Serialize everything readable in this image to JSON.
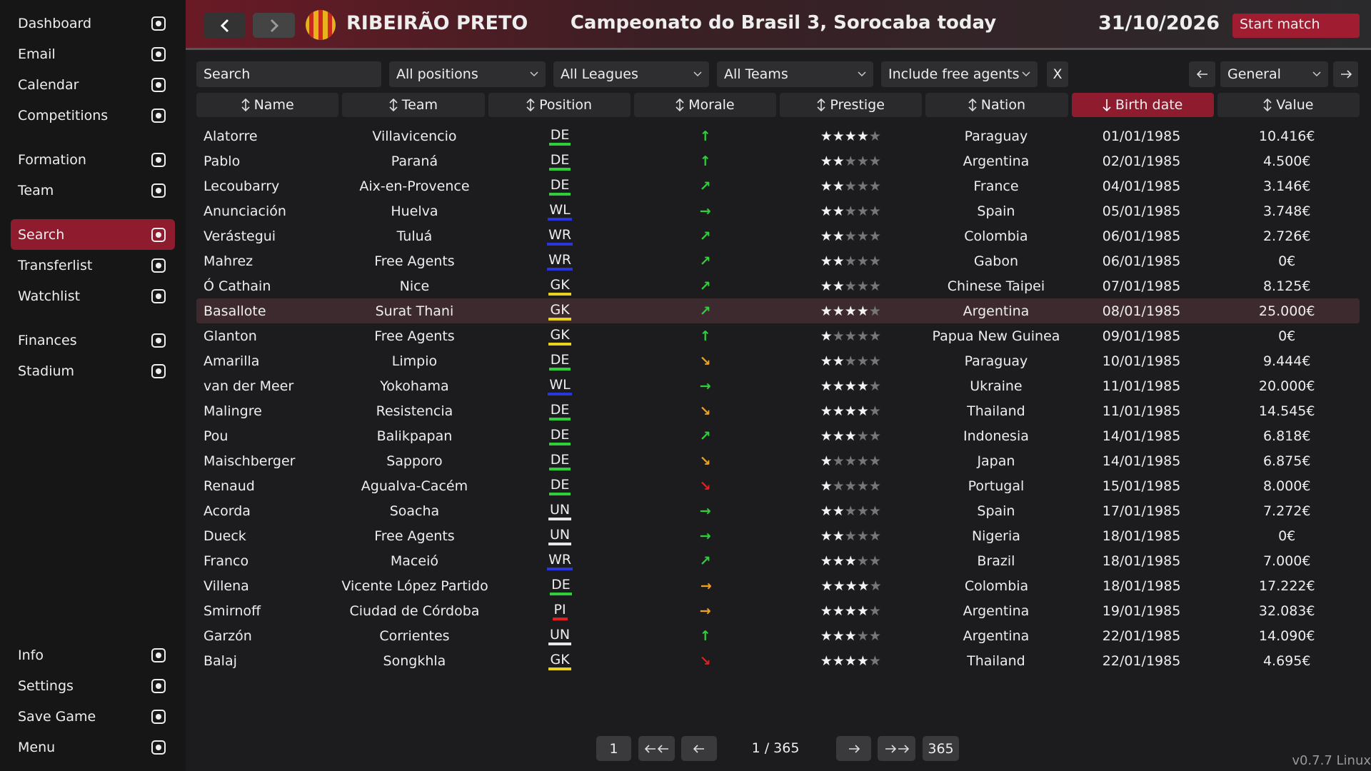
{
  "sidebar": {
    "groups": [
      [
        {
          "label": "Dashboard"
        },
        {
          "label": "Email"
        },
        {
          "label": "Calendar"
        },
        {
          "label": "Competitions"
        }
      ],
      [
        {
          "label": "Formation"
        },
        {
          "label": "Team"
        }
      ],
      [
        {
          "label": "Search",
          "selected": true
        },
        {
          "label": "Transferlist"
        },
        {
          "label": "Watchlist"
        }
      ],
      [
        {
          "label": "Finances"
        },
        {
          "label": "Stadium"
        }
      ]
    ],
    "bottom": [
      {
        "label": "Info"
      },
      {
        "label": "Settings"
      },
      {
        "label": "Save Game"
      },
      {
        "label": "Menu"
      }
    ]
  },
  "header": {
    "club": "RIBEIRÃO PRETO",
    "title": "Campeonato do Brasil 3, Sorocaba today",
    "date": "31/10/2026",
    "start_button": "Start match"
  },
  "filters": {
    "search": "Search",
    "positions": "All positions",
    "leagues": "All Leagues",
    "teams": "All Teams",
    "free_agents": "Include free agents",
    "clear": "X",
    "view": "General"
  },
  "table": {
    "columns": [
      "Name",
      "Team",
      "Position",
      "Morale",
      "Prestige",
      "Nation",
      "Birth date",
      "Value"
    ],
    "sorted_column": 6,
    "highlighted_row": 7,
    "position_colors": {
      "DE": "#2fcf3a",
      "WL": "#2a35e0",
      "WR": "#2a35e0",
      "GK": "#e8d21c",
      "UN": "#e8e8e8",
      "PI": "#e02020"
    },
    "rows": [
      {
        "name": "Alatorre",
        "team": "Villavicencio",
        "position": "DE",
        "morale": {
          "symbol": "↑",
          "color": "#2fcf3a"
        },
        "prestige": 4,
        "nation": "Paraguay",
        "birth_date": "01/01/1985",
        "value": "10.416€"
      },
      {
        "name": "Pablo",
        "team": "Paraná",
        "position": "DE",
        "morale": {
          "symbol": "↑",
          "color": "#2fcf3a"
        },
        "prestige": 2,
        "nation": "Argentina",
        "birth_date": "02/01/1985",
        "value": "4.500€"
      },
      {
        "name": "Lecoubarry",
        "team": "Aix-en-Provence",
        "position": "DE",
        "morale": {
          "symbol": "↗",
          "color": "#2fcf3a"
        },
        "prestige": 2,
        "nation": "France",
        "birth_date": "04/01/1985",
        "value": "3.146€"
      },
      {
        "name": "Anunciación",
        "team": "Huelva",
        "position": "WL",
        "morale": {
          "symbol": "→",
          "color": "#2fcf3a"
        },
        "prestige": 2,
        "nation": "Spain",
        "birth_date": "05/01/1985",
        "value": "3.748€"
      },
      {
        "name": "Verástegui",
        "team": "Tuluá",
        "position": "WR",
        "morale": {
          "symbol": "↗",
          "color": "#2fcf3a"
        },
        "prestige": 2,
        "nation": "Colombia",
        "birth_date": "06/01/1985",
        "value": "2.726€"
      },
      {
        "name": "Mahrez",
        "team": "Free Agents",
        "position": "WR",
        "morale": {
          "symbol": "↗",
          "color": "#2fcf3a"
        },
        "prestige": 2,
        "nation": "Gabon",
        "birth_date": "06/01/1985",
        "value": "0€"
      },
      {
        "name": "Ó Cathain",
        "team": "Nice",
        "position": "GK",
        "morale": {
          "symbol": "↗",
          "color": "#2fcf3a"
        },
        "prestige": 2,
        "nation": "Chinese Taipei",
        "birth_date": "07/01/1985",
        "value": "8.125€"
      },
      {
        "name": "Basallote",
        "team": "Surat Thani",
        "position": "GK",
        "morale": {
          "symbol": "↗",
          "color": "#2fcf3a"
        },
        "prestige": 4,
        "nation": "Argentina",
        "birth_date": "08/01/1985",
        "value": "25.000€"
      },
      {
        "name": "Glanton",
        "team": "Free Agents",
        "position": "GK",
        "morale": {
          "symbol": "↑",
          "color": "#2fcf3a"
        },
        "prestige": 1,
        "nation": "Papua New Guinea",
        "birth_date": "09/01/1985",
        "value": "0€"
      },
      {
        "name": "Amarilla",
        "team": "Limpio",
        "position": "DE",
        "morale": {
          "symbol": "↘",
          "color": "#f0a020"
        },
        "prestige": 2,
        "nation": "Paraguay",
        "birth_date": "10/01/1985",
        "value": "9.444€"
      },
      {
        "name": "van der Meer",
        "team": "Yokohama",
        "position": "WL",
        "morale": {
          "symbol": "→",
          "color": "#2fcf3a"
        },
        "prestige": 4,
        "nation": "Ukraine",
        "birth_date": "11/01/1985",
        "value": "20.000€"
      },
      {
        "name": "Malingre",
        "team": "Resistencia",
        "position": "DE",
        "morale": {
          "symbol": "↘",
          "color": "#f0a020"
        },
        "prestige": 4,
        "nation": "Thailand",
        "birth_date": "11/01/1985",
        "value": "14.545€"
      },
      {
        "name": "Pou",
        "team": "Balikpapan",
        "position": "DE",
        "morale": {
          "symbol": "↗",
          "color": "#2fcf3a"
        },
        "prestige": 3,
        "nation": "Indonesia",
        "birth_date": "14/01/1985",
        "value": "6.818€"
      },
      {
        "name": "Maischberger",
        "team": "Sapporo",
        "position": "DE",
        "morale": {
          "symbol": "↘",
          "color": "#f0a020"
        },
        "prestige": 1,
        "nation": "Japan",
        "birth_date": "14/01/1985",
        "value": "6.875€"
      },
      {
        "name": "Renaud",
        "team": "Agualva-Cacém",
        "position": "DE",
        "morale": {
          "symbol": "↘",
          "color": "#e02020"
        },
        "prestige": 1,
        "nation": "Portugal",
        "birth_date": "15/01/1985",
        "value": "8.000€"
      },
      {
        "name": "Acorda",
        "team": "Soacha",
        "position": "UN",
        "morale": {
          "symbol": "→",
          "color": "#2fcf3a"
        },
        "prestige": 2,
        "nation": "Spain",
        "birth_date": "17/01/1985",
        "value": "7.272€"
      },
      {
        "name": "Dueck",
        "team": "Free Agents",
        "position": "UN",
        "morale": {
          "symbol": "→",
          "color": "#2fcf3a"
        },
        "prestige": 2,
        "nation": "Nigeria",
        "birth_date": "18/01/1985",
        "value": "0€"
      },
      {
        "name": "Franco",
        "team": "Maceió",
        "position": "WR",
        "morale": {
          "symbol": "↗",
          "color": "#2fcf3a"
        },
        "prestige": 3,
        "nation": "Brazil",
        "birth_date": "18/01/1985",
        "value": "7.000€"
      },
      {
        "name": "Villena",
        "team": "Vicente López Partido",
        "position": "DE",
        "morale": {
          "symbol": "→",
          "color": "#f0a020"
        },
        "prestige": 4,
        "nation": "Colombia",
        "birth_date": "18/01/1985",
        "value": "17.222€"
      },
      {
        "name": "Smirnoff",
        "team": "Ciudad de Córdoba",
        "position": "PI",
        "morale": {
          "symbol": "→",
          "color": "#f0a020"
        },
        "prestige": 4,
        "nation": "Argentina",
        "birth_date": "19/01/1985",
        "value": "32.083€"
      },
      {
        "name": "Garzón",
        "team": "Corrientes",
        "position": "UN",
        "morale": {
          "symbol": "↑",
          "color": "#2fcf3a"
        },
        "prestige": 3,
        "nation": "Argentina",
        "birth_date": "22/01/1985",
        "value": "14.090€"
      },
      {
        "name": "Balaj",
        "team": "Songkhla",
        "position": "GK",
        "morale": {
          "symbol": "↘",
          "color": "#e02020"
        },
        "prestige": 4,
        "nation": "Thailand",
        "birth_date": "22/01/1985",
        "value": "4.695€"
      }
    ]
  },
  "pagination": {
    "first": "1",
    "page": "1 / 365",
    "last": "365"
  },
  "version": "v0.7.7 Linux"
}
